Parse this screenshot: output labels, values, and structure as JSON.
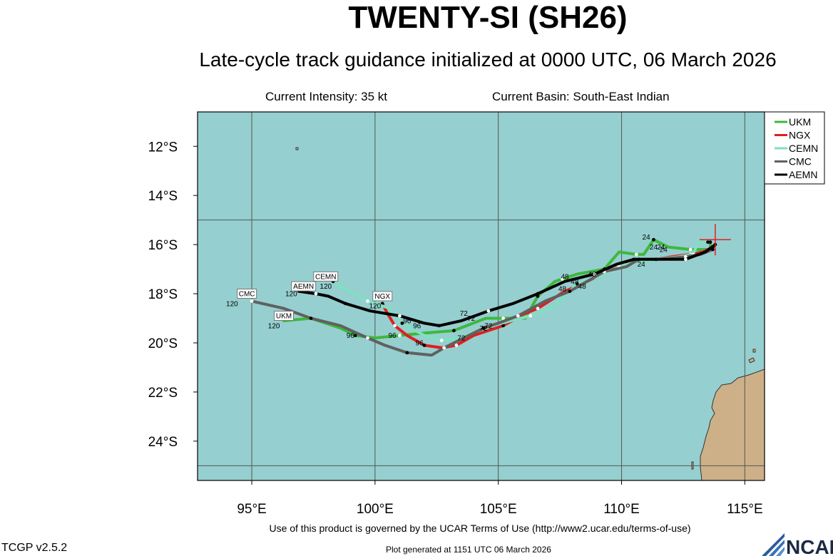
{
  "title": "TWENTY-SI (SH26)",
  "subtitle": "Late-cycle track guidance initialized at 0000 UTC, 06 March 2026",
  "current_intensity": "Current Intensity: 35 kt",
  "current_basin": "Current Basin: South-East Indian",
  "footer_terms": "Use of this product is governed by the UCAR Terms of Use (http://www2.ucar.edu/terms-of-use)",
  "version": "TCGP v2.5.2",
  "generated": "Plot generated at 1151 UTC   06 March 2026",
  "logo_text": "NCAR",
  "colors": {
    "ocean": "#96cfcf",
    "land": "#cdb088",
    "grid": "#555555"
  },
  "chart_data": {
    "type": "line",
    "xlim": [
      92.8,
      115.8
    ],
    "ylim": [
      -25.6,
      -10.6
    ],
    "x_ticks": [
      95,
      100,
      105,
      110,
      115
    ],
    "x_tick_labels": [
      "95°E",
      "100°E",
      "105°E",
      "110°E",
      "115°E"
    ],
    "y_ticks": [
      -12,
      -14,
      -16,
      -18,
      -20,
      -22,
      -24
    ],
    "y_tick_labels": [
      "12°S",
      "14°S",
      "16°S",
      "18°S",
      "20°S",
      "22°S",
      "24°S"
    ],
    "grid": true,
    "legend_position": "top-right",
    "current_position": {
      "lon": 113.8,
      "lat": -15.8
    },
    "series": [
      {
        "name": "UKM",
        "color": "#3db83d",
        "points": [
          [
            113.6,
            -15.9
          ],
          [
            113.6,
            -16.2
          ],
          [
            112.8,
            -16.2
          ],
          [
            111.9,
            -16.1
          ],
          [
            111.3,
            -15.8
          ],
          [
            110.9,
            -16.4
          ],
          [
            110.6,
            -16.4
          ],
          [
            109.9,
            -16.3
          ],
          [
            109.3,
            -17.0
          ],
          [
            108.2,
            -17.2
          ],
          [
            107.6,
            -17.4
          ],
          [
            107.3,
            -17.5
          ],
          [
            106.6,
            -18.1
          ],
          [
            106.1,
            -19.0
          ],
          [
            105.2,
            -19.0
          ],
          [
            104.5,
            -19.0
          ],
          [
            103.2,
            -19.5
          ],
          [
            102.0,
            -19.6
          ],
          [
            101.0,
            -19.7
          ],
          [
            100.0,
            -19.8
          ],
          [
            99.2,
            -19.7
          ],
          [
            98.6,
            -19.4
          ],
          [
            97.4,
            -19.0
          ],
          [
            96.3,
            -19.1
          ]
        ],
        "labels": [
          {
            "text": "24",
            "lon": 111.0,
            "lat": -15.8
          },
          {
            "text": "48",
            "lon": 107.7,
            "lat": -17.4
          },
          {
            "text": "72",
            "lon": 103.9,
            "lat": -19.1
          },
          {
            "text": "96",
            "lon": 100.7,
            "lat": -19.8
          },
          {
            "text": "120",
            "lon": 95.9,
            "lat": -19.4
          }
        ],
        "end_label": {
          "text": "UKM",
          "lon": 96.3,
          "lat": -19.0
        }
      },
      {
        "name": "NGX",
        "color": "#dd1f1f",
        "points": [
          [
            113.7,
            -16.1
          ],
          [
            113.3,
            -16.3
          ],
          [
            112.8,
            -16.4
          ],
          [
            112.0,
            -16.5
          ],
          [
            111.4,
            -16.6
          ],
          [
            110.9,
            -16.6
          ],
          [
            110.1,
            -16.8
          ],
          [
            109.0,
            -17.3
          ],
          [
            108.4,
            -17.6
          ],
          [
            107.7,
            -17.9
          ],
          [
            106.6,
            -18.6
          ],
          [
            106.1,
            -18.8
          ],
          [
            105.2,
            -19.3
          ],
          [
            104.0,
            -19.7
          ],
          [
            103.3,
            -20.1
          ],
          [
            102.7,
            -20.2
          ],
          [
            102.0,
            -20.1
          ],
          [
            101.3,
            -19.7
          ],
          [
            100.8,
            -19.3
          ],
          [
            100.5,
            -18.8
          ],
          [
            100.3,
            -18.4
          ]
        ],
        "labels": [
          {
            "text": "24",
            "lon": 111.6,
            "lat": -16.2
          },
          {
            "text": "48",
            "lon": 108.1,
            "lat": -17.6
          },
          {
            "text": "72",
            "lon": 103.5,
            "lat": -19.9
          },
          {
            "text": "96",
            "lon": 101.8,
            "lat": -20.1
          },
          {
            "text": "120",
            "lon": 100.0,
            "lat": -18.6
          }
        ],
        "end_label": {
          "text": "NGX",
          "lon": 100.3,
          "lat": -18.2
        }
      },
      {
        "name": "CEMN",
        "color": "#7fe0c0",
        "points": [
          [
            113.5,
            -15.9
          ],
          [
            113.1,
            -15.9
          ],
          [
            112.9,
            -16.4
          ],
          [
            112.3,
            -16.5
          ],
          [
            111.4,
            -16.6
          ],
          [
            110.6,
            -16.7
          ],
          [
            109.9,
            -16.9
          ],
          [
            109.3,
            -17.2
          ],
          [
            108.2,
            -17.6
          ],
          [
            107.3,
            -18.5
          ],
          [
            106.3,
            -18.9
          ],
          [
            105.5,
            -19.1
          ],
          [
            104.4,
            -19.4
          ],
          [
            103.4,
            -19.8
          ],
          [
            102.7,
            -19.9
          ],
          [
            102.0,
            -19.7
          ],
          [
            101.1,
            -19.2
          ],
          [
            100.6,
            -18.6
          ],
          [
            99.7,
            -18.3
          ],
          [
            98.8,
            -17.8
          ],
          [
            98.3,
            -17.5
          ]
        ],
        "labels": [
          {
            "text": "24",
            "lon": 111.3,
            "lat": -16.2
          },
          {
            "text": "48",
            "lon": 107.6,
            "lat": -17.9
          },
          {
            "text": "72",
            "lon": 104.4,
            "lat": -19.5
          },
          {
            "text": "96",
            "lon": 101.3,
            "lat": -19.2
          },
          {
            "text": "120",
            "lon": 98.0,
            "lat": -17.8
          }
        ],
        "end_label": {
          "text": "CEMN",
          "lon": 98.0,
          "lat": -17.4
        }
      },
      {
        "name": "CMC",
        "color": "#606060",
        "points": [
          [
            113.7,
            -16.2
          ],
          [
            113.2,
            -16.4
          ],
          [
            112.6,
            -16.5
          ],
          [
            111.5,
            -16.6
          ],
          [
            110.7,
            -16.6
          ],
          [
            110.2,
            -16.9
          ],
          [
            109.3,
            -17.1
          ],
          [
            108.6,
            -17.5
          ],
          [
            107.9,
            -17.9
          ],
          [
            106.9,
            -18.3
          ],
          [
            105.8,
            -18.9
          ],
          [
            105.0,
            -19.2
          ],
          [
            104.4,
            -19.4
          ],
          [
            103.6,
            -19.8
          ],
          [
            102.8,
            -20.2
          ],
          [
            102.3,
            -20.5
          ],
          [
            101.3,
            -20.4
          ],
          [
            100.4,
            -20.1
          ],
          [
            99.7,
            -19.8
          ],
          [
            98.6,
            -19.3
          ],
          [
            97.4,
            -19.0
          ],
          [
            96.3,
            -18.6
          ],
          [
            95.0,
            -18.3
          ]
        ],
        "labels": [
          {
            "text": "24",
            "lon": 110.8,
            "lat": -16.9
          },
          {
            "text": "48",
            "lon": 108.4,
            "lat": -17.8
          },
          {
            "text": "72",
            "lon": 104.6,
            "lat": -19.4
          },
          {
            "text": "96",
            "lon": 99.0,
            "lat": -19.8
          },
          {
            "text": "120",
            "lon": 94.2,
            "lat": -18.5
          }
        ],
        "end_label": {
          "text": "CMC",
          "lon": 94.8,
          "lat": -18.1
        }
      },
      {
        "name": "AEMN",
        "color": "#000000",
        "points": [
          [
            113.8,
            -16.0
          ],
          [
            113.4,
            -16.3
          ],
          [
            112.6,
            -16.6
          ],
          [
            111.4,
            -16.6
          ],
          [
            110.5,
            -16.6
          ],
          [
            109.8,
            -16.8
          ],
          [
            108.9,
            -17.2
          ],
          [
            107.7,
            -17.5
          ],
          [
            106.6,
            -18.0
          ],
          [
            105.6,
            -18.4
          ],
          [
            104.6,
            -18.7
          ],
          [
            103.5,
            -19.1
          ],
          [
            102.6,
            -19.3
          ],
          [
            102.0,
            -19.2
          ],
          [
            101.0,
            -18.9
          ],
          [
            99.8,
            -18.7
          ],
          [
            98.8,
            -18.4
          ],
          [
            98.1,
            -18.1
          ],
          [
            97.6,
            -18.0
          ],
          [
            96.9,
            -17.9
          ]
        ],
        "labels": [
          {
            "text": "24",
            "lon": 111.7,
            "lat": -16.3
          },
          {
            "text": "48",
            "lon": 108.8,
            "lat": -17.3
          },
          {
            "text": "72",
            "lon": 103.6,
            "lat": -18.9
          },
          {
            "text": "96",
            "lon": 101.7,
            "lat": -19.4
          },
          {
            "text": "120",
            "lon": 96.6,
            "lat": -18.1
          }
        ],
        "end_label": {
          "text": "AEMN",
          "lon": 97.1,
          "lat": -17.8
        }
      }
    ]
  }
}
